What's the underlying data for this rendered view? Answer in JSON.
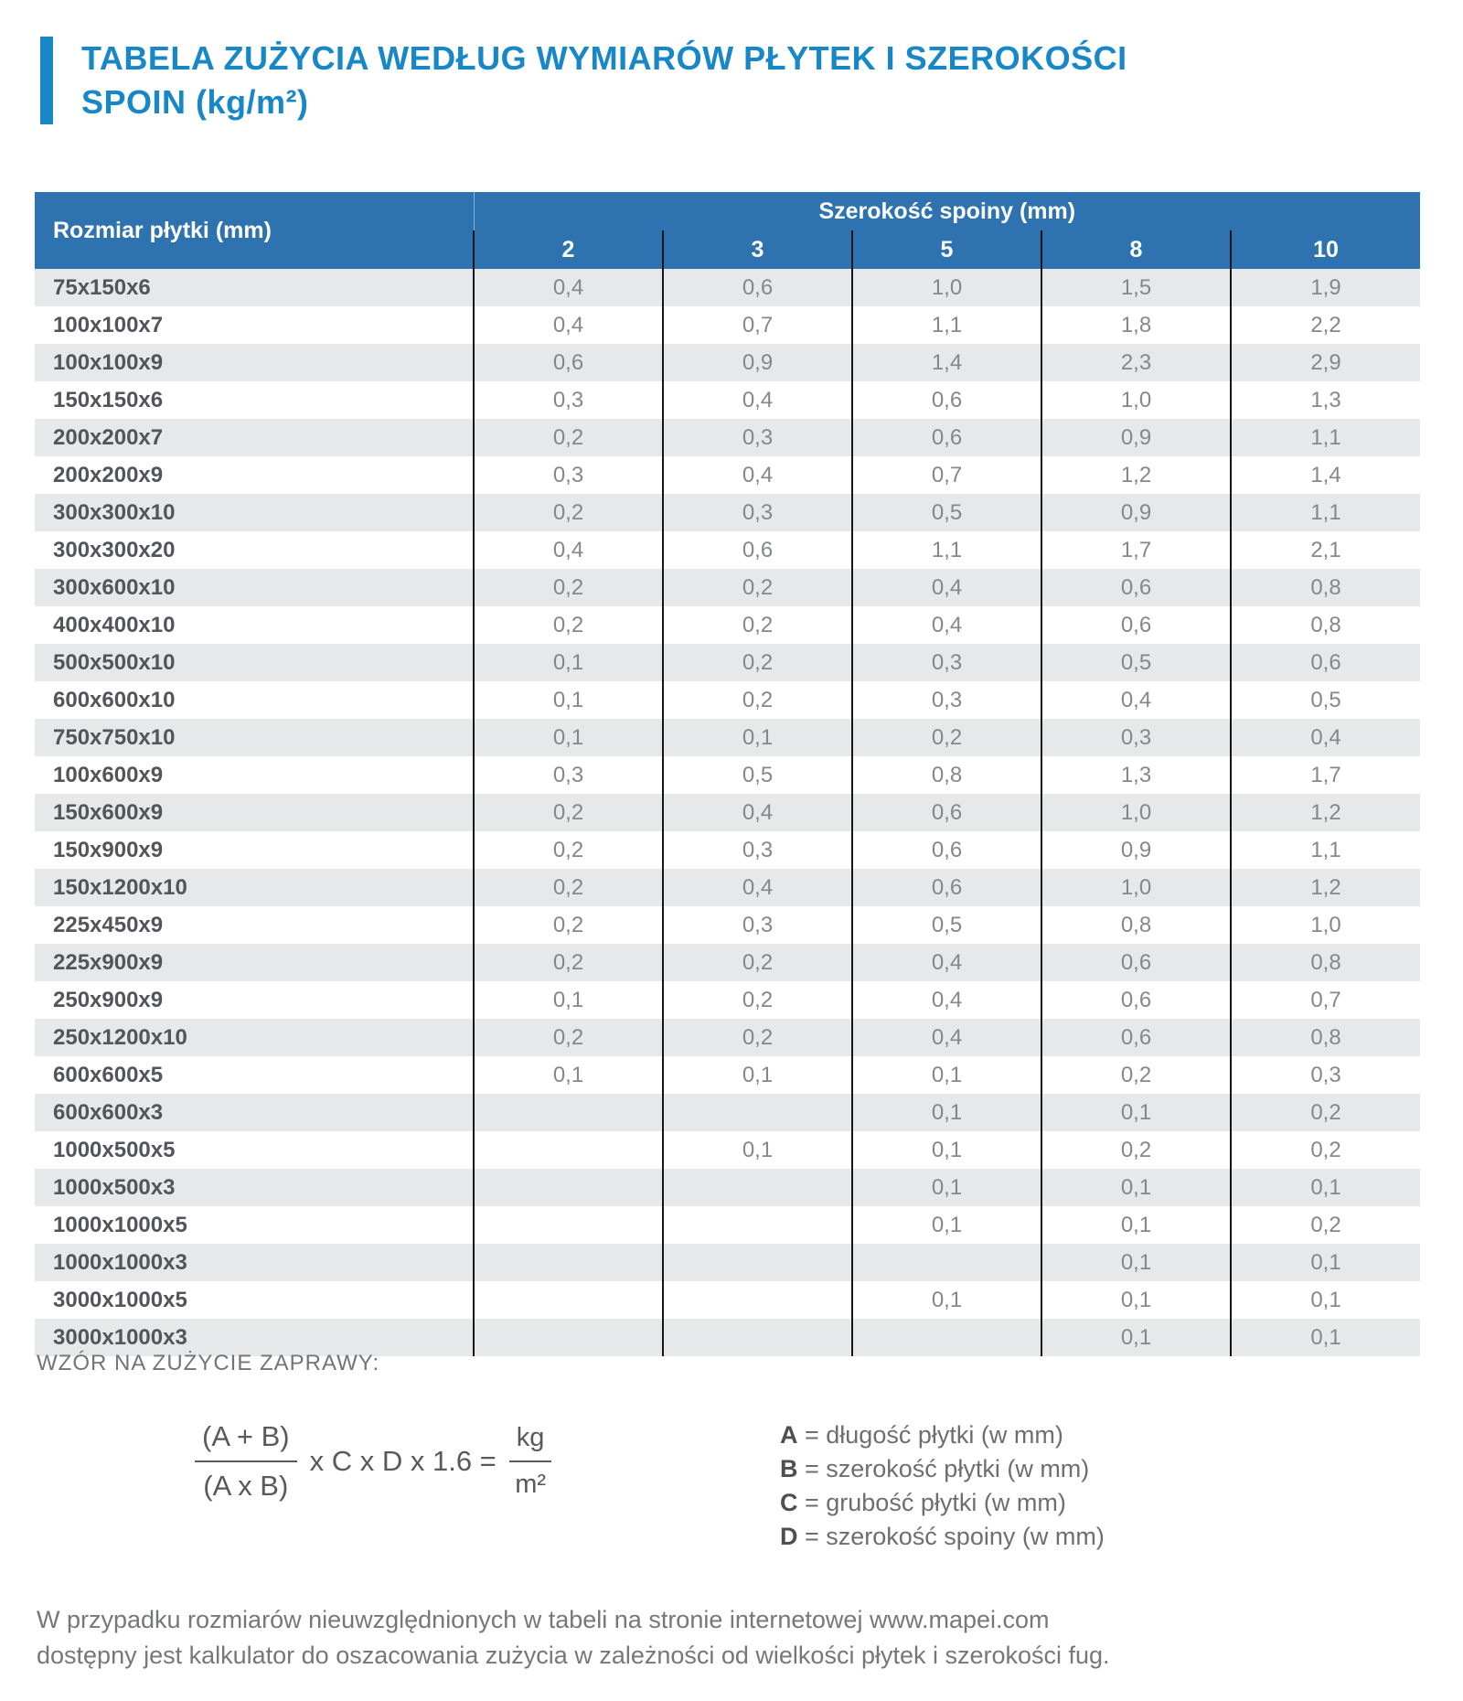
{
  "title": {
    "line1": "TABELA ZUŻYCIA WEDŁUG WYMIARÓW PŁYTEK I SZEROKOŚCI",
    "line2": "SPOIN (kg/m²)"
  },
  "colors": {
    "title_blue": "#1787c8",
    "header_blue": "#2e73b0",
    "row_stripe_gray": "#e7e8e9",
    "value_text_gray": "#85878a",
    "label_text_gray": "#54555a",
    "body_text_gray": "#6d6e71"
  },
  "table": {
    "row_header": "Rozmiar płytki (mm)",
    "group_header": "Szerokość spoiny (mm)",
    "widths": [
      "2",
      "3",
      "5",
      "8",
      "10"
    ],
    "rows": [
      {
        "size": "75x150x6",
        "values": [
          "0,4",
          "0,6",
          "1,0",
          "1,5",
          "1,9"
        ]
      },
      {
        "size": "100x100x7",
        "values": [
          "0,4",
          "0,7",
          "1,1",
          "1,8",
          "2,2"
        ]
      },
      {
        "size": "100x100x9",
        "values": [
          "0,6",
          "0,9",
          "1,4",
          "2,3",
          "2,9"
        ]
      },
      {
        "size": "150x150x6",
        "values": [
          "0,3",
          "0,4",
          "0,6",
          "1,0",
          "1,3"
        ]
      },
      {
        "size": "200x200x7",
        "values": [
          "0,2",
          "0,3",
          "0,6",
          "0,9",
          "1,1"
        ]
      },
      {
        "size": "200x200x9",
        "values": [
          "0,3",
          "0,4",
          "0,7",
          "1,2",
          "1,4"
        ]
      },
      {
        "size": "300x300x10",
        "values": [
          "0,2",
          "0,3",
          "0,5",
          "0,9",
          "1,1"
        ]
      },
      {
        "size": "300x300x20",
        "values": [
          "0,4",
          "0,6",
          "1,1",
          "1,7",
          "2,1"
        ]
      },
      {
        "size": "300x600x10",
        "values": [
          "0,2",
          "0,2",
          "0,4",
          "0,6",
          "0,8"
        ]
      },
      {
        "size": "400x400x10",
        "values": [
          "0,2",
          "0,2",
          "0,4",
          "0,6",
          "0,8"
        ]
      },
      {
        "size": "500x500x10",
        "values": [
          "0,1",
          "0,2",
          "0,3",
          "0,5",
          "0,6"
        ]
      },
      {
        "size": "600x600x10",
        "values": [
          "0,1",
          "0,2",
          "0,3",
          "0,4",
          "0,5"
        ]
      },
      {
        "size": "750x750x10",
        "values": [
          "0,1",
          "0,1",
          "0,2",
          "0,3",
          "0,4"
        ]
      },
      {
        "size": "100x600x9",
        "values": [
          "0,3",
          "0,5",
          "0,8",
          "1,3",
          "1,7"
        ]
      },
      {
        "size": "150x600x9",
        "values": [
          "0,2",
          "0,4",
          "0,6",
          "1,0",
          "1,2"
        ]
      },
      {
        "size": "150x900x9",
        "values": [
          "0,2",
          "0,3",
          "0,6",
          "0,9",
          "1,1"
        ]
      },
      {
        "size": "150x1200x10",
        "values": [
          "0,2",
          "0,4",
          "0,6",
          "1,0",
          "1,2"
        ]
      },
      {
        "size": "225x450x9",
        "values": [
          "0,2",
          "0,3",
          "0,5",
          "0,8",
          "1,0"
        ]
      },
      {
        "size": "225x900x9",
        "values": [
          "0,2",
          "0,2",
          "0,4",
          "0,6",
          "0,8"
        ]
      },
      {
        "size": "250x900x9",
        "values": [
          "0,1",
          "0,2",
          "0,4",
          "0,6",
          "0,7"
        ]
      },
      {
        "size": "250x1200x10",
        "values": [
          "0,2",
          "0,2",
          "0,4",
          "0,6",
          "0,8"
        ]
      },
      {
        "size": "600x600x5",
        "values": [
          "0,1",
          "0,1",
          "0,1",
          "0,2",
          "0,3"
        ]
      },
      {
        "size": "600x600x3",
        "values": [
          "",
          "",
          "0,1",
          "0,1",
          "0,2"
        ]
      },
      {
        "size": "1000x500x5",
        "values": [
          "",
          "0,1",
          "0,1",
          "0,2",
          "0,2"
        ]
      },
      {
        "size": "1000x500x3",
        "values": [
          "",
          "",
          "0,1",
          "0,1",
          "0,1"
        ]
      },
      {
        "size": "1000x1000x5",
        "values": [
          "",
          "",
          "0,1",
          "0,1",
          "0,2"
        ]
      },
      {
        "size": "1000x1000x3",
        "values": [
          "",
          "",
          "",
          "0,1",
          "0,1"
        ]
      },
      {
        "size": "3000x1000x5",
        "values": [
          "",
          "",
          "0,1",
          "0,1",
          "0,1"
        ]
      },
      {
        "size": "3000x1000x3",
        "values": [
          "",
          "",
          "",
          "0,1",
          "0,1"
        ]
      }
    ]
  },
  "formula_section": {
    "heading": "WZÓR NA ZUŻYCIE ZAPRAWY:",
    "fraction_numerator": "(A + B)",
    "fraction_denominator": "(A x B)",
    "middle": "x C x D x 1.6 =",
    "result_numerator": "kg",
    "result_denominator": "m²"
  },
  "legend": {
    "items": [
      {
        "letter": "A",
        "text": "= długość płytki (w mm)"
      },
      {
        "letter": "B",
        "text": "= szerokość płytki (w mm)"
      },
      {
        "letter": "C",
        "text": "= grubość płytki (w mm)"
      },
      {
        "letter": "D",
        "text": "= szerokość spoiny (w mm)"
      }
    ]
  },
  "footer": {
    "line1": "W przypadku rozmiarów nieuwzględnionych w tabeli na stronie internetowej www.mapei.com",
    "line2": "dostępny jest kalkulator do oszacowania zużycia w zależności od wielkości płytek i szerokości fug."
  }
}
